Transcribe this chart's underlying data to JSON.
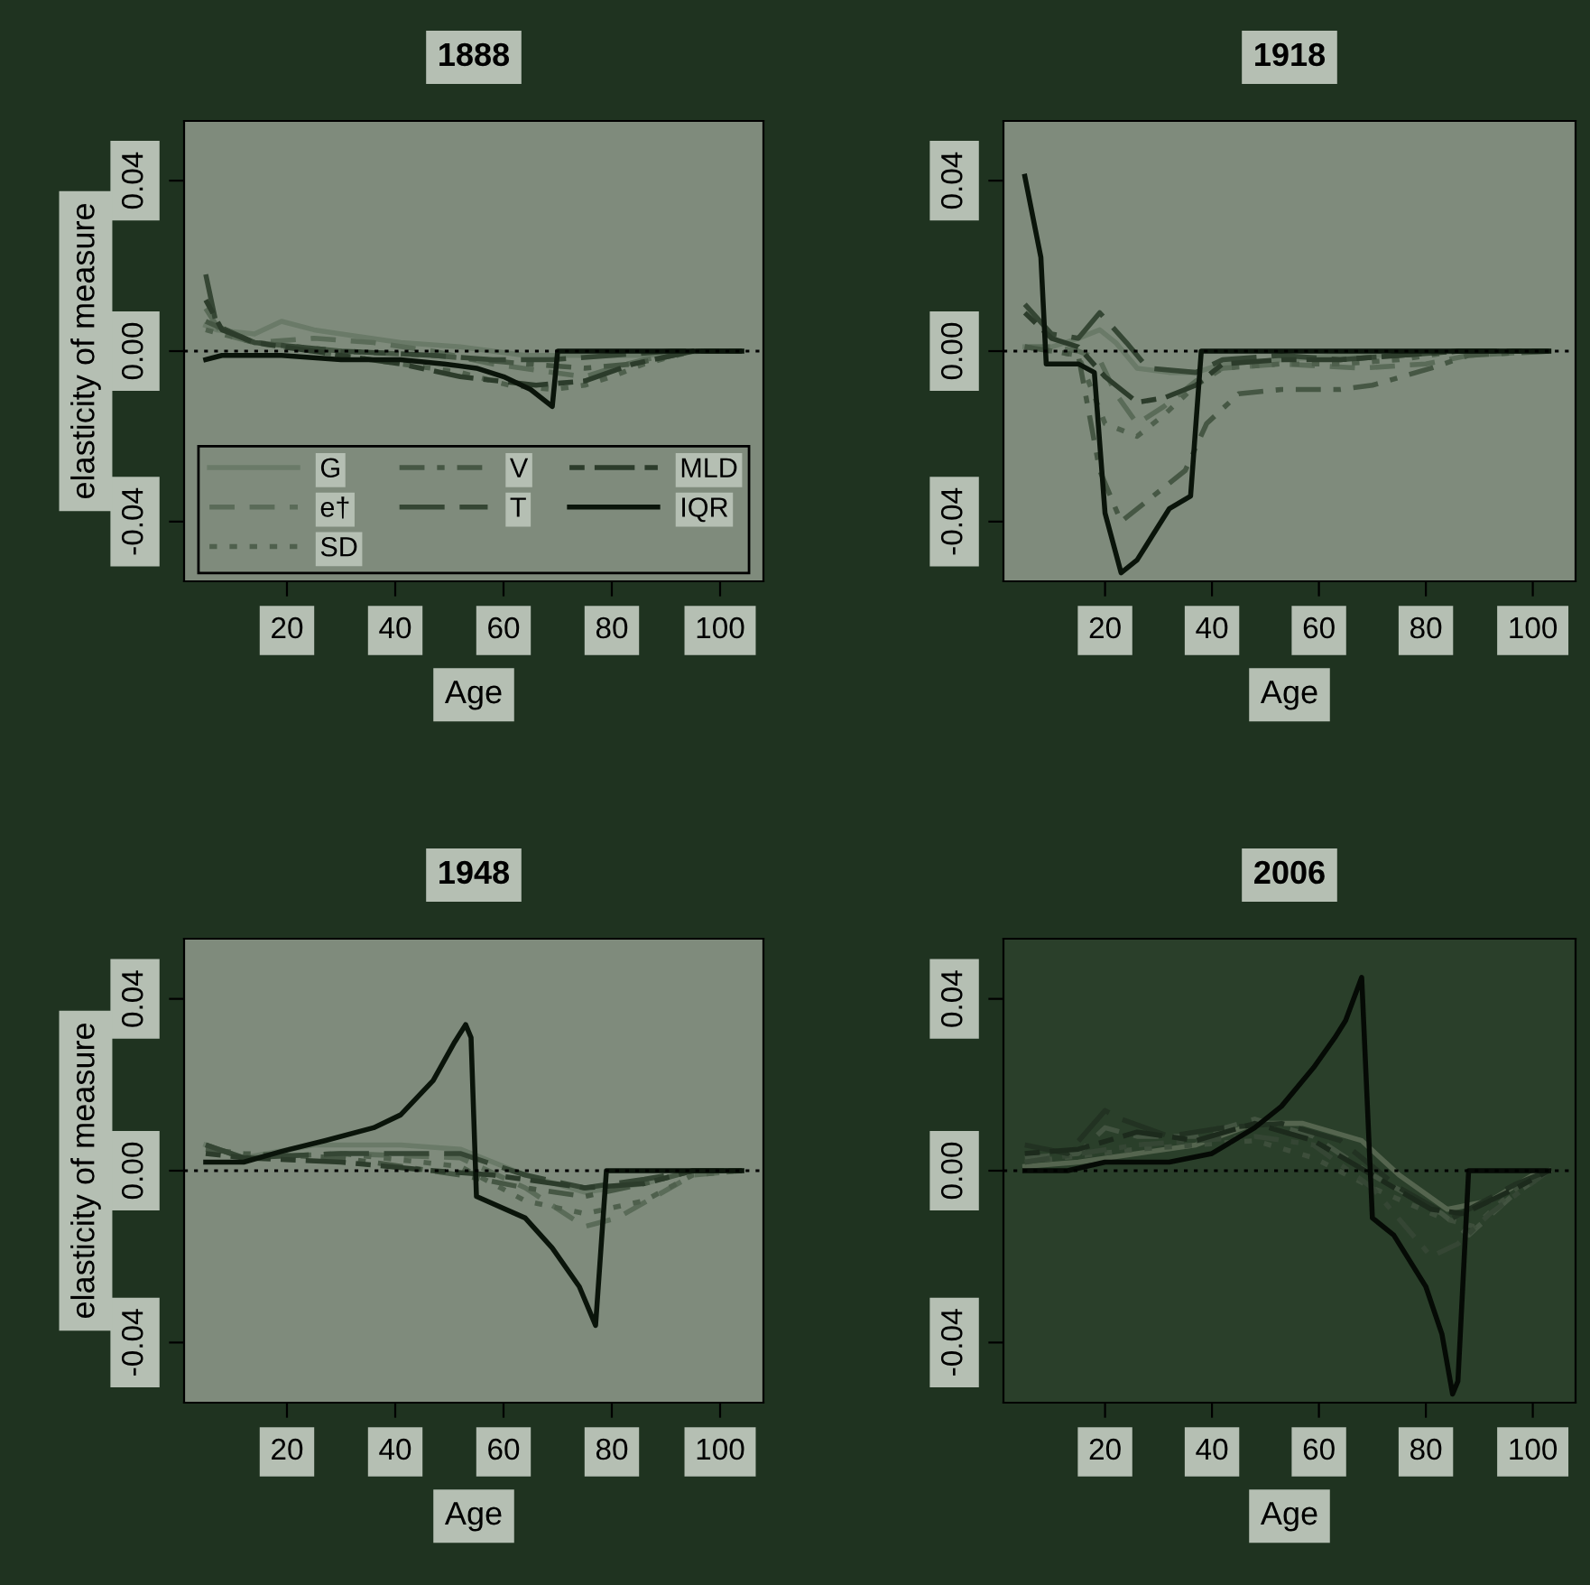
{
  "chart_data": [
    {
      "type": "line",
      "title": "1888",
      "xlabel": "Age",
      "ylabel": "elasticity of measure",
      "xlim": [
        1,
        108
      ],
      "ylim": [
        -0.054,
        0.054
      ],
      "xticks": [
        20,
        40,
        60,
        80,
        100
      ],
      "yticks": [
        {
          "value": -0.04,
          "label": "-0.04"
        },
        {
          "value": 0,
          "label": "0.00"
        },
        {
          "value": 0.04,
          "label": "0.04"
        }
      ],
      "grid": false,
      "legend": "bottom",
      "ref_lines": [
        {
          "axis": "y",
          "value": 0,
          "color": "#000000",
          "line_style": "dotted"
        }
      ],
      "series": [
        {
          "name": "G",
          "color": "#6a7a68",
          "line_style": "solid",
          "x": [
            5,
            7,
            14,
            19,
            25,
            30,
            41,
            52,
            64,
            75,
            86,
            97,
            104
          ],
          "values": [
            0.006,
            0.005,
            0.004,
            0.007,
            0.005,
            0.004,
            0.002,
            0.001,
            -0.001,
            -0.001,
            -0.001,
            0,
            0
          ]
        },
        {
          "name": "e†",
          "color": "#5a6b58",
          "line_style": "dashed",
          "x": [
            5,
            8,
            14,
            25,
            36,
            47,
            58,
            69,
            75,
            80,
            86,
            95,
            104
          ],
          "values": [
            0.01,
            0.004,
            0.002,
            0.003,
            0.002,
            0,
            -0.003,
            -0.005,
            -0.006,
            -0.004,
            -0.002,
            0,
            0
          ]
        },
        {
          "name": "SD",
          "color": "#4f604d",
          "line_style": "dotted",
          "x": [
            5,
            14,
            30,
            41,
            52,
            61,
            69,
            75,
            80,
            86,
            95,
            104
          ],
          "values": [
            0.005,
            0.002,
            -0.001,
            -0.003,
            -0.005,
            -0.008,
            -0.009,
            -0.008,
            -0.006,
            -0.003,
            0,
            0
          ]
        },
        {
          "name": "V",
          "color": "#465744",
          "line_style": "dashdot",
          "x": [
            5,
            14,
            30,
            47,
            64,
            75,
            84,
            95,
            104
          ],
          "values": [
            0.007,
            0.002,
            0,
            -0.001,
            -0.003,
            -0.004,
            -0.003,
            0,
            0
          ]
        },
        {
          "name": "T",
          "color": "#354634",
          "line_style": "longdash",
          "x": [
            5,
            7,
            14,
            30,
            47,
            58,
            69,
            80,
            91,
            104
          ],
          "values": [
            0.018,
            0.006,
            0.002,
            0,
            -0.001,
            -0.002,
            -0.002,
            -0.001,
            0,
            0
          ]
        },
        {
          "name": "MLD",
          "color": "#2c3c2b",
          "line_style": "twodash",
          "x": [
            5,
            8,
            14,
            30,
            41,
            52,
            59,
            66,
            75,
            84,
            95,
            104
          ],
          "values": [
            0.012,
            0.005,
            0.002,
            -0.001,
            -0.003,
            -0.006,
            -0.007,
            -0.008,
            -0.007,
            -0.003,
            0,
            0
          ]
        },
        {
          "name": "IQR",
          "color": "#0a140a",
          "line_style": "solid",
          "x": [
            5,
            8,
            14,
            19,
            30,
            41,
            49,
            55,
            60,
            65,
            69,
            70,
            104
          ],
          "values": [
            -0.002,
            -0.001,
            -0.001,
            -0.001,
            -0.002,
            -0.002,
            -0.003,
            -0.004,
            -0.006,
            -0.009,
            -0.013,
            0,
            0
          ]
        }
      ]
    },
    {
      "type": "line",
      "title": "1918",
      "xlabel": "Age",
      "xlim": [
        1,
        108
      ],
      "ylim": [
        -0.054,
        0.054
      ],
      "xticks": [
        20,
        40,
        60,
        80,
        100
      ],
      "yticks": [
        {
          "value": -0.04,
          "label": "-0.04"
        },
        {
          "value": 0,
          "label": "0.00"
        },
        {
          "value": 0.04,
          "label": "0.04"
        }
      ],
      "grid": false,
      "ref_lines": [
        {
          "axis": "y",
          "value": 0,
          "color": "#000000",
          "line_style": "dotted"
        }
      ],
      "series": [
        {
          "color": "#6a7a68",
          "line_style": "solid",
          "x": [
            5,
            10,
            15,
            19,
            22,
            26,
            32,
            37,
            42,
            53,
            64,
            75,
            86,
            103
          ],
          "values": [
            0.001,
            0.001,
            0.003,
            0.005,
            0.002,
            -0.004,
            -0.005,
            -0.005,
            -0.003,
            -0.002,
            -0.001,
            -0.001,
            0,
            0
          ]
        },
        {
          "color": "#5a6b58",
          "line_style": "dashed",
          "x": [
            5,
            10,
            15,
            19,
            22,
            26,
            31,
            37,
            42,
            53,
            68,
            80,
            88,
            103
          ],
          "values": [
            0.001,
            0.001,
            0,
            -0.002,
            -0.01,
            -0.017,
            -0.013,
            -0.007,
            -0.004,
            -0.003,
            -0.004,
            -0.003,
            -0.001,
            0
          ]
        },
        {
          "color": "#4f604d",
          "line_style": "dotted",
          "x": [
            5,
            15,
            20,
            26,
            31,
            37,
            42,
            53,
            64,
            75,
            86,
            103
          ],
          "values": [
            0.001,
            -0.001,
            -0.017,
            -0.02,
            -0.015,
            -0.008,
            -0.004,
            -0.003,
            -0.003,
            -0.002,
            0,
            0
          ]
        },
        {
          "color": "#465744",
          "line_style": "dashdot",
          "x": [
            5,
            15,
            19,
            23,
            28,
            35,
            39,
            45,
            53,
            64,
            70,
            81,
            88,
            103
          ],
          "values": [
            0.001,
            -0.001,
            -0.028,
            -0.04,
            -0.035,
            -0.028,
            -0.017,
            -0.01,
            -0.009,
            -0.009,
            -0.008,
            -0.004,
            -0.001,
            0
          ]
        },
        {
          "color": "#354634",
          "line_style": "longdash",
          "x": [
            5,
            10,
            15,
            19,
            24,
            28,
            37,
            42,
            53,
            64,
            75,
            86,
            103
          ],
          "values": [
            0.011,
            0.004,
            0.003,
            0.009,
            0.002,
            -0.004,
            -0.005,
            -0.002,
            -0.001,
            -0.002,
            -0.001,
            0,
            0
          ]
        },
        {
          "color": "#2c3c2b",
          "line_style": "twodash",
          "x": [
            5,
            10,
            15,
            20,
            26,
            31,
            37,
            42,
            53,
            64,
            75,
            86,
            103
          ],
          "values": [
            0.009,
            0.003,
            0.001,
            -0.006,
            -0.012,
            -0.011,
            -0.008,
            -0.003,
            -0.002,
            -0.002,
            -0.001,
            0,
            0
          ]
        },
        {
          "color": "#0a140a",
          "line_style": "solid",
          "x": [
            5,
            8,
            9,
            15,
            18,
            20,
            23,
            26,
            29,
            32,
            36,
            38,
            103
          ],
          "values": [
            0.041,
            0.022,
            -0.003,
            -0.003,
            -0.005,
            -0.038,
            -0.052,
            -0.049,
            -0.043,
            -0.037,
            -0.034,
            0,
            0
          ]
        }
      ]
    },
    {
      "type": "line",
      "title": "1948",
      "xlabel": "Age",
      "ylabel": "elasticity of measure",
      "xlim": [
        1,
        108
      ],
      "ylim": [
        -0.054,
        0.054
      ],
      "xticks": [
        20,
        40,
        60,
        80,
        100
      ],
      "yticks": [
        {
          "value": -0.04,
          "label": "-0.04"
        },
        {
          "value": 0,
          "label": "0.00"
        },
        {
          "value": 0.04,
          "label": "0.04"
        }
      ],
      "grid": false,
      "ref_lines": [
        {
          "axis": "y",
          "value": 0,
          "color": "#000000",
          "line_style": "dotted"
        }
      ],
      "series": [
        {
          "color": "#6a7a68",
          "line_style": "solid",
          "x": [
            5,
            12,
            25,
            41,
            52,
            64,
            75,
            86,
            95,
            104
          ],
          "values": [
            0.006,
            0.003,
            0.006,
            0.006,
            0.005,
            -0.001,
            -0.005,
            -0.003,
            0,
            0
          ]
        },
        {
          "color": "#5a6b58",
          "line_style": "dashed",
          "x": [
            5,
            12,
            30,
            52,
            64,
            75,
            81,
            88,
            95,
            104
          ],
          "values": [
            0.006,
            0.003,
            0.004,
            0.003,
            -0.004,
            -0.013,
            -0.011,
            -0.006,
            -0.001,
            0
          ]
        },
        {
          "color": "#4f604d",
          "line_style": "dotted",
          "x": [
            5,
            12,
            30,
            52,
            64,
            75,
            86,
            95,
            104
          ],
          "values": [
            0.006,
            0.003,
            0.004,
            0.001,
            -0.007,
            -0.01,
            -0.007,
            -0.001,
            0
          ]
        },
        {
          "color": "#465744",
          "line_style": "dashdot",
          "x": [
            5,
            12,
            30,
            52,
            64,
            75,
            86,
            95,
            104
          ],
          "values": [
            0.005,
            0.004,
            0.003,
            -0.001,
            -0.004,
            -0.006,
            -0.003,
            0,
            0
          ]
        },
        {
          "color": "#354634",
          "line_style": "longdash",
          "x": [
            5,
            12,
            30,
            52,
            64,
            75,
            86,
            95,
            104
          ],
          "values": [
            0.006,
            0.003,
            0.004,
            0.004,
            -0.001,
            -0.004,
            -0.002,
            0,
            0
          ]
        },
        {
          "color": "#2c3c2b",
          "line_style": "twodash",
          "x": [
            5,
            12,
            30,
            47,
            58,
            75,
            86,
            95,
            104
          ],
          "values": [
            0.004,
            0.003,
            0.002,
            0,
            -0.001,
            -0.004,
            -0.003,
            0,
            0
          ]
        },
        {
          "color": "#0a140a",
          "line_style": "solid",
          "x": [
            5,
            12,
            19,
            27,
            36,
            41,
            47,
            51,
            53,
            54,
            55,
            64,
            69,
            74,
            77,
            79,
            104
          ],
          "values": [
            0.002,
            0.002,
            0.0045,
            0.007,
            0.01,
            0.013,
            0.021,
            0.03,
            0.034,
            0.031,
            -0.006,
            -0.011,
            -0.018,
            -0.027,
            -0.036,
            0,
            0
          ]
        }
      ]
    },
    {
      "type": "line",
      "title": "2006",
      "xlabel": "Age",
      "xlim": [
        1,
        108
      ],
      "ylim": [
        -0.054,
        0.054
      ],
      "xticks": [
        20,
        40,
        60,
        80,
        100
      ],
      "yticks": [
        {
          "value": -0.04,
          "label": "-0.04"
        },
        {
          "value": 0,
          "label": "0.00"
        },
        {
          "value": 0.04,
          "label": "0.04"
        }
      ],
      "grid": false,
      "ref_lines": [
        {
          "axis": "y",
          "value": 0,
          "color": "#000000",
          "line_style": "dotted"
        }
      ],
      "series": [
        {
          "color": "#55654f",
          "line_style": "solid",
          "x": [
            5,
            15,
            26,
            37,
            48,
            57,
            68,
            75,
            84,
            92,
            100,
            103
          ],
          "values": [
            0.001,
            0.002,
            0.004,
            0.006,
            0.011,
            0.011,
            0.007,
            -0.001,
            -0.009,
            -0.007,
            -0.001,
            0
          ]
        },
        {
          "color": "#435441",
          "line_style": "dashed",
          "x": [
            5,
            15,
            20,
            26,
            37,
            48,
            59,
            70,
            83,
            88,
            96,
            103
          ],
          "values": [
            0.003,
            0.004,
            0.01,
            0.008,
            0.008,
            0.012,
            0.008,
            -0.001,
            -0.01,
            -0.015,
            -0.006,
            0
          ]
        },
        {
          "color": "#3d4e3b",
          "line_style": "dotted",
          "x": [
            5,
            26,
            48,
            59,
            70,
            83,
            89,
            97,
            103
          ],
          "values": [
            0.002,
            0.005,
            0.007,
            0.003,
            -0.004,
            -0.011,
            -0.013,
            -0.004,
            0
          ]
        },
        {
          "color": "#354634",
          "line_style": "dashdot",
          "x": [
            5,
            26,
            48,
            59,
            70,
            81,
            86,
            92,
            103
          ],
          "values": [
            0.002,
            0.006,
            0.008,
            0.006,
            -0.004,
            -0.02,
            -0.017,
            -0.01,
            0
          ]
        },
        {
          "color": "#223222",
          "line_style": "longdash",
          "x": [
            5,
            13,
            20,
            23,
            32,
            42,
            53,
            64,
            75,
            85,
            97,
            103
          ],
          "values": [
            0.006,
            0.004,
            0.014,
            0.012,
            0.008,
            0.01,
            0.011,
            0.007,
            -0.004,
            -0.011,
            -0.003,
            0
          ]
        },
        {
          "color": "#1c2a1c",
          "line_style": "twodash",
          "x": [
            5,
            15,
            26,
            37,
            48,
            59,
            70,
            81,
            87,
            97,
            103
          ],
          "values": [
            0.004,
            0.005,
            0.009,
            0.007,
            0.011,
            0.007,
            -0.001,
            -0.009,
            -0.01,
            -0.004,
            0
          ]
        },
        {
          "color": "#050a05",
          "line_style": "solid",
          "x": [
            5,
            13,
            20,
            32,
            40,
            48,
            53,
            59,
            63,
            65,
            68,
            70,
            74,
            80,
            83,
            85,
            86,
            88,
            103
          ],
          "values": [
            0,
            0,
            0.002,
            0.002,
            0.004,
            0.01,
            0.015,
            0.024,
            0.031,
            0.035,
            0.045,
            -0.011,
            -0.015,
            -0.027,
            -0.038,
            -0.052,
            -0.049,
            0,
            0
          ]
        }
      ]
    }
  ]
}
